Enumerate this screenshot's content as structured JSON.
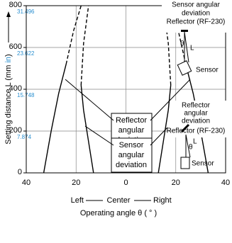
{
  "chart_data": {
    "type": "line",
    "xlim": [
      -40,
      40
    ],
    "xticks": [
      {
        "value": -40,
        "label": "40"
      },
      {
        "value": -20,
        "label": "20"
      },
      0,
      20,
      40
    ],
    "ylim": [
      0,
      800
    ],
    "yticks": [
      0,
      200,
      400,
      600,
      800
    ],
    "yticks_in": [
      {
        "value": 200,
        "label": "7.874"
      },
      {
        "value": 400,
        "label": "15.748"
      },
      {
        "value": 600,
        "label": "23.622"
      },
      {
        "value": 800,
        "label": "31.496"
      }
    ],
    "grid": true,
    "x_label_parts": [
      "Left",
      "Center",
      "Right"
    ],
    "x_label": "Operating angle θ ( ° )",
    "y_label_parts": [
      "Setting distance L (mm ",
      "in",
      ")"
    ],
    "series": [
      {
        "color": "#000000",
        "style": "solid",
        "x": [
          -33,
          -30,
          -27,
          -24
        ],
        "values": [
          0,
          200,
          380,
          520
        ]
      },
      {
        "color": "#000000",
        "style": "dashed",
        "x": [
          -24,
          -21,
          -18
        ],
        "values": [
          520,
          680,
          800
        ]
      },
      {
        "color": "#000000",
        "style": "solid",
        "x": [
          33,
          30,
          27,
          24
        ],
        "values": [
          0,
          200,
          380,
          520
        ]
      },
      {
        "color": "#000000",
        "style": "dashed",
        "x": [
          24,
          21,
          18
        ],
        "values": [
          520,
          680,
          800
        ]
      },
      {
        "color": "#000000",
        "style": "solid",
        "x": [
          -13,
          -15,
          -17,
          -18
        ],
        "values": [
          0,
          150,
          300,
          420
        ]
      },
      {
        "color": "#000000",
        "style": "dashed",
        "x": [
          -18,
          -17,
          -15
        ],
        "values": [
          420,
          620,
          800
        ]
      },
      {
        "color": "#000000",
        "style": "solid",
        "x": [
          13,
          15,
          17,
          18
        ],
        "values": [
          0,
          150,
          300,
          420
        ]
      },
      {
        "color": "#000000",
        "style": "dashed",
        "x": [
          18,
          17,
          15
        ],
        "values": [
          420,
          620,
          800
        ]
      }
    ],
    "annotations": {
      "reflector_box": [
        "Reflector",
        "angular",
        "deviation"
      ],
      "sensor_box": [
        "Sensor",
        "angular",
        "deviation"
      ],
      "top_right": [
        "Sensor angular",
        "deviation",
        "Reflector (RF-230)",
        "Sensor",
        "θ",
        "L"
      ],
      "mid_right": [
        "Reflector",
        "angular",
        "deviation",
        "Reflector (RF-230)",
        "Sensor",
        "θ",
        "L"
      ]
    }
  }
}
